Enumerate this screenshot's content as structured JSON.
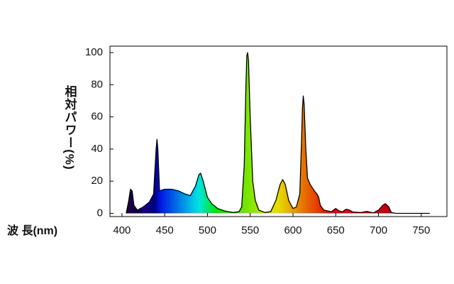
{
  "chart_data": {
    "type": "area",
    "y_label": "相対パワー(%)",
    "x_label": "波 長(nm)",
    "x": [
      405,
      408,
      410,
      412,
      414,
      418,
      425,
      432,
      437,
      440,
      441,
      442,
      444,
      450,
      458,
      466,
      474,
      480,
      486,
      490,
      492,
      495,
      500,
      505,
      512,
      520,
      530,
      537,
      540,
      543,
      545,
      546,
      547,
      548,
      550,
      553,
      556,
      560,
      567,
      574,
      580,
      585,
      588,
      591,
      595,
      600,
      604,
      608,
      610,
      611,
      612,
      613,
      615,
      617,
      620,
      625,
      628,
      630,
      632,
      636,
      645,
      650,
      654,
      658,
      662,
      666,
      670,
      680,
      686,
      690,
      694,
      700,
      705,
      708,
      712,
      715,
      720,
      760
    ],
    "values": [
      0,
      8,
      15,
      14,
      5,
      2,
      4,
      7,
      12,
      40,
      46,
      40,
      14,
      15,
      15,
      14,
      12,
      11,
      17,
      24,
      25,
      20,
      10,
      6,
      3,
      1.5,
      0.5,
      1,
      4,
      30,
      80,
      98,
      100,
      95,
      60,
      20,
      8,
      2,
      0.5,
      1,
      8,
      18,
      21,
      18,
      8,
      3,
      4,
      12,
      45,
      65,
      73,
      68,
      40,
      22,
      18,
      14,
      12,
      10,
      5,
      2,
      1,
      3,
      1.5,
      1,
      2.5,
      2,
      0.8,
      0.5,
      1.2,
      0.8,
      0.3,
      2,
      5,
      6,
      4,
      0.5,
      0,
      0
    ],
    "line_color": "#000000",
    "xlim": [
      386,
      780
    ],
    "ylim": [
      -2,
      104
    ],
    "xticks": [
      400,
      450,
      500,
      550,
      600,
      650,
      700,
      750
    ],
    "yticks": [
      0,
      20,
      40,
      60,
      80,
      100
    ]
  }
}
